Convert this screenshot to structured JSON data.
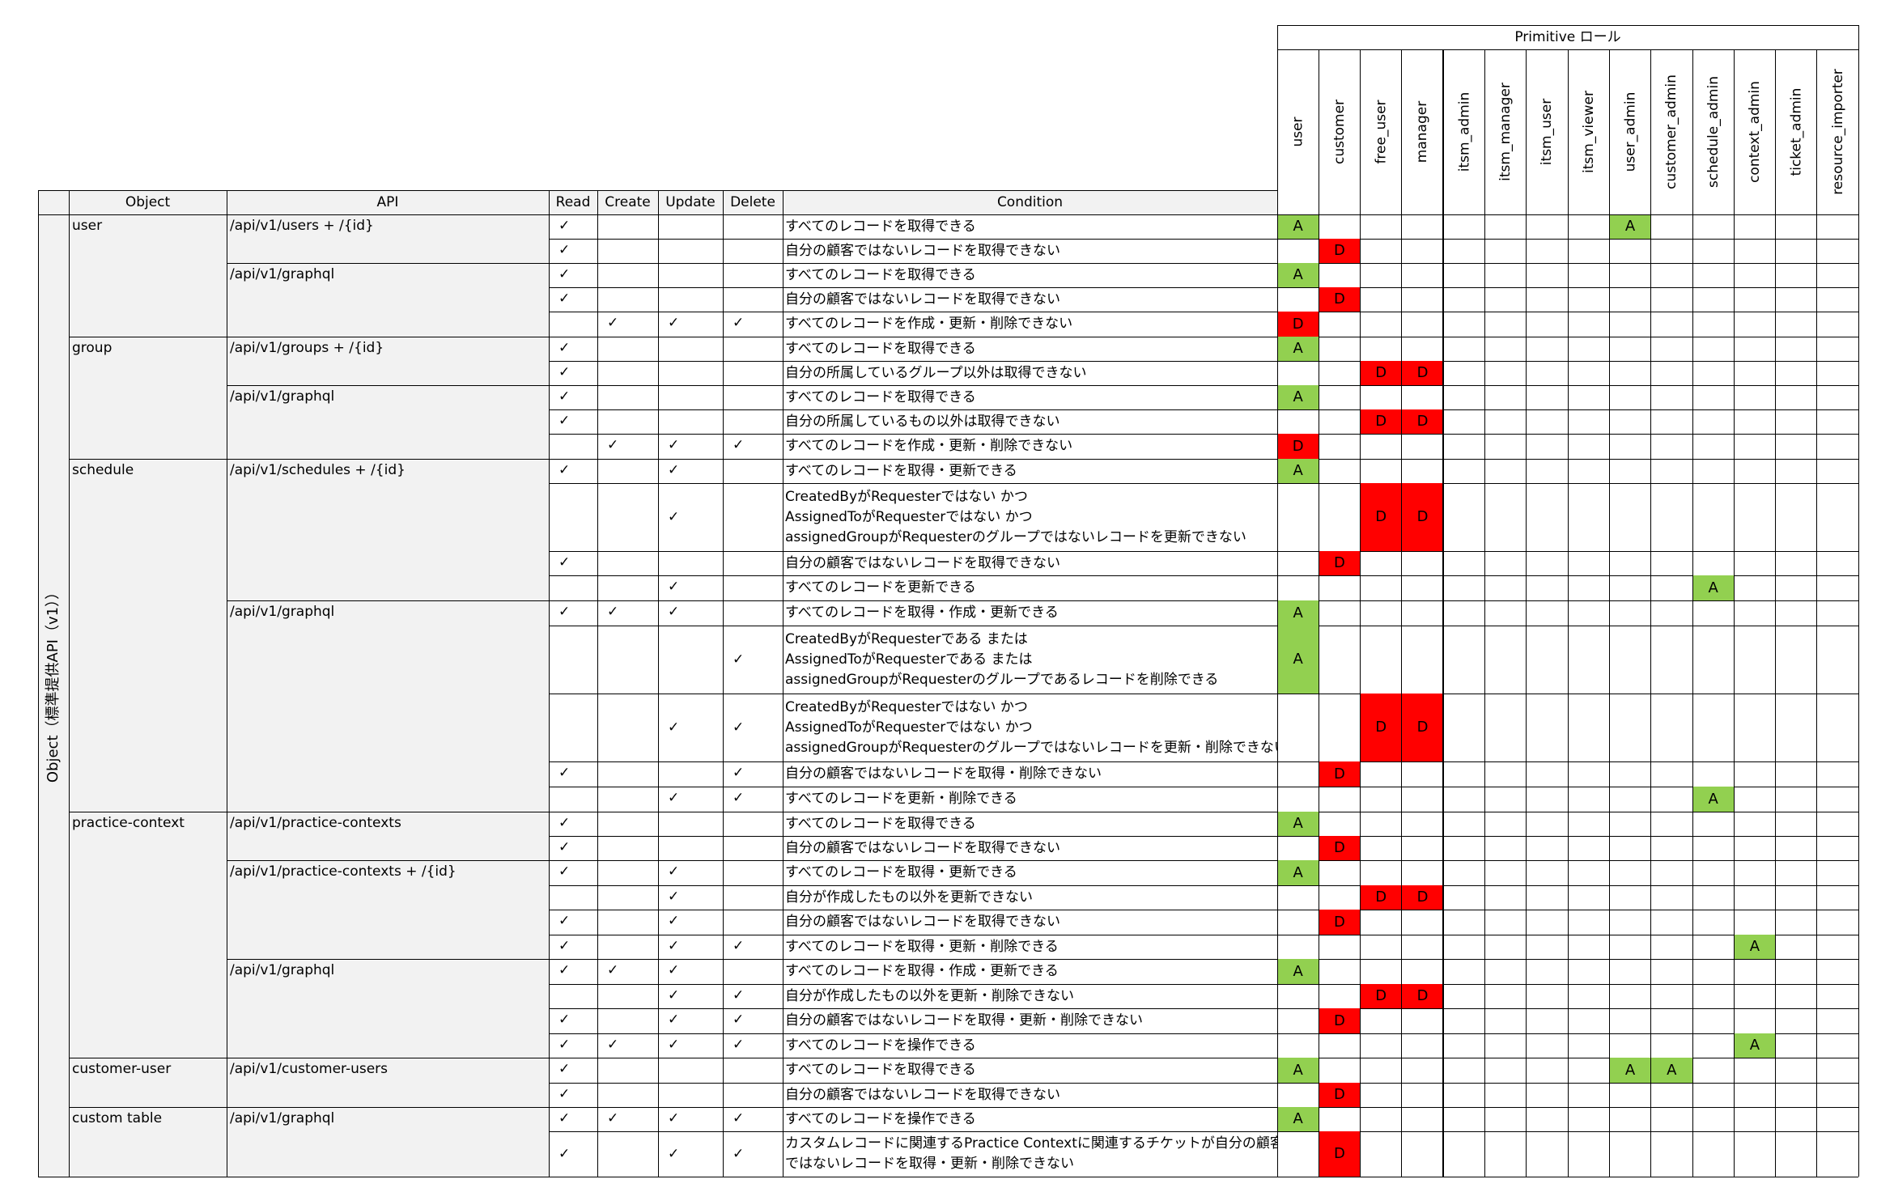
{
  "primitive_header": "Primitive ロール",
  "side_label": "Object（標準提供API（v1））",
  "headers": {
    "object": "Object",
    "api": "API",
    "read": "Read",
    "create": "Create",
    "update": "Update",
    "delete": "Delete",
    "condition": "Condition"
  },
  "roles": [
    "user",
    "customer",
    "free_user",
    "manager",
    "itsm_admin",
    "itsm_manager",
    "itsm_user",
    "itsm_viewer",
    "user_admin",
    "customer_admin",
    "schedule_admin",
    "context_admin",
    "ticket_admin",
    "resource_importer"
  ],
  "check_mark": "✓",
  "colors": {
    "allow_fill": "#92d050",
    "deny_fill": "#ff0000",
    "header_fill": "#f2f2f2",
    "grid": "#000000"
  },
  "objects": [
    {
      "name": "user",
      "rows": 5
    },
    {
      "name": "group",
      "rows": 5
    },
    {
      "name": "schedule",
      "rows": 9
    },
    {
      "name": "practice-context",
      "rows": 10
    },
    {
      "name": "customer-user",
      "rows": 2
    },
    {
      "name": "custom table",
      "rows": 2
    }
  ],
  "apis": [
    {
      "path": "/api/v1/users + /{id}",
      "rows": 2
    },
    {
      "path": "/api/v1/graphql",
      "rows": 3
    },
    {
      "path": "/api/v1/groups + /{id}",
      "rows": 2
    },
    {
      "path": "/api/v1/graphql",
      "rows": 3
    },
    {
      "path": "/api/v1/schedules + /{id}",
      "rows": 4
    },
    {
      "path": "/api/v1/graphql",
      "rows": 5
    },
    {
      "path": "/api/v1/practice-contexts",
      "rows": 2
    },
    {
      "path": "/api/v1/practice-contexts + /{id}",
      "rows": 4
    },
    {
      "path": "/api/v1/graphql",
      "rows": 4
    },
    {
      "path": "/api/v1/customer-users",
      "rows": 2
    },
    {
      "path": "/api/v1/graphql",
      "rows": 2
    }
  ],
  "rows": [
    {
      "r": 1,
      "c": 0,
      "u": 0,
      "d": 0,
      "condition": "すべてのレコードを取得できる",
      "marks": {
        "user": "A",
        "user_admin": "A"
      }
    },
    {
      "r": 1,
      "c": 0,
      "u": 0,
      "d": 0,
      "condition": "自分の顧客ではないレコードを取得できない",
      "marks": {
        "customer": "D"
      }
    },
    {
      "r": 1,
      "c": 0,
      "u": 0,
      "d": 0,
      "condition": "すべてのレコードを取得できる",
      "marks": {
        "user": "A"
      }
    },
    {
      "r": 1,
      "c": 0,
      "u": 0,
      "d": 0,
      "condition": "自分の顧客ではないレコードを取得できない",
      "marks": {
        "customer": "D"
      }
    },
    {
      "r": 0,
      "c": 1,
      "u": 1,
      "d": 1,
      "condition": "すべてのレコードを作成・更新・削除できない",
      "marks": {
        "user": "D"
      }
    },
    {
      "r": 1,
      "c": 0,
      "u": 0,
      "d": 0,
      "condition": "すべてのレコードを取得できる",
      "marks": {
        "user": "A"
      }
    },
    {
      "r": 1,
      "c": 0,
      "u": 0,
      "d": 0,
      "condition": "自分の所属しているグループ以外は取得できない",
      "marks": {
        "free_user": "D",
        "manager": "D"
      }
    },
    {
      "r": 1,
      "c": 0,
      "u": 0,
      "d": 0,
      "condition": "すべてのレコードを取得できる",
      "marks": {
        "user": "A"
      }
    },
    {
      "r": 1,
      "c": 0,
      "u": 0,
      "d": 0,
      "condition": "自分の所属しているもの以外は取得できない",
      "marks": {
        "free_user": "D",
        "manager": "D"
      }
    },
    {
      "r": 0,
      "c": 1,
      "u": 1,
      "d": 1,
      "condition": "すべてのレコードを作成・更新・削除できない",
      "marks": {
        "user": "D"
      }
    },
    {
      "r": 1,
      "c": 0,
      "u": 1,
      "d": 0,
      "condition": "すべてのレコードを取得・更新できる",
      "marks": {
        "user": "A"
      }
    },
    {
      "r": 0,
      "c": 0,
      "u": 1,
      "d": 0,
      "condition": "CreatedByがRequesterではない かつ\nAssignedToがRequesterではない かつ\nassignedGroupがRequesterのグループではないレコードを更新できない",
      "marks": {
        "free_user": "D",
        "manager": "D"
      }
    },
    {
      "r": 1,
      "c": 0,
      "u": 0,
      "d": 0,
      "condition": "自分の顧客ではないレコードを取得できない",
      "marks": {
        "customer": "D"
      }
    },
    {
      "r": 0,
      "c": 0,
      "u": 1,
      "d": 0,
      "condition": "すべてのレコードを更新できる",
      "marks": {
        "schedule_admin": "A"
      }
    },
    {
      "r": 1,
      "c": 1,
      "u": 1,
      "d": 0,
      "condition": "すべてのレコードを取得・作成・更新できる",
      "marks": {
        "user": "A"
      }
    },
    {
      "r": 0,
      "c": 0,
      "u": 0,
      "d": 1,
      "condition": "CreatedByがRequesterである または\nAssignedToがRequesterである または\nassignedGroupがRequesterのグループであるレコードを削除できる",
      "marks": {
        "user": "A"
      }
    },
    {
      "r": 0,
      "c": 0,
      "u": 1,
      "d": 1,
      "condition": "CreatedByがRequesterではない かつ\nAssignedToがRequesterではない かつ\nassignedGroupがRequesterのグループではないレコードを更新・削除できない",
      "marks": {
        "free_user": "D",
        "manager": "D"
      }
    },
    {
      "r": 1,
      "c": 0,
      "u": 0,
      "d": 1,
      "condition": "自分の顧客ではないレコードを取得・削除できない",
      "marks": {
        "customer": "D"
      }
    },
    {
      "r": 0,
      "c": 0,
      "u": 1,
      "d": 1,
      "condition": "すべてのレコードを更新・削除できる",
      "marks": {
        "schedule_admin": "A"
      }
    },
    {
      "r": 1,
      "c": 0,
      "u": 0,
      "d": 0,
      "condition": "すべてのレコードを取得できる",
      "marks": {
        "user": "A"
      }
    },
    {
      "r": 1,
      "c": 0,
      "u": 0,
      "d": 0,
      "condition": "自分の顧客ではないレコードを取得できない",
      "marks": {
        "customer": "D"
      }
    },
    {
      "r": 1,
      "c": 0,
      "u": 1,
      "d": 0,
      "condition": "すべてのレコードを取得・更新できる",
      "marks": {
        "user": "A"
      }
    },
    {
      "r": 0,
      "c": 0,
      "u": 1,
      "d": 0,
      "condition": "自分が作成したもの以外を更新できない",
      "marks": {
        "free_user": "D",
        "manager": "D"
      }
    },
    {
      "r": 1,
      "c": 0,
      "u": 1,
      "d": 0,
      "condition": "自分の顧客ではないレコードを取得できない",
      "marks": {
        "customer": "D"
      }
    },
    {
      "r": 1,
      "c": 0,
      "u": 1,
      "d": 1,
      "condition": "すべてのレコードを取得・更新・削除できる",
      "marks": {
        "context_admin": "A"
      }
    },
    {
      "r": 1,
      "c": 1,
      "u": 1,
      "d": 0,
      "condition": "すべてのレコードを取得・作成・更新できる",
      "marks": {
        "user": "A"
      }
    },
    {
      "r": 0,
      "c": 0,
      "u": 1,
      "d": 1,
      "condition": "自分が作成したもの以外を更新・削除できない",
      "marks": {
        "free_user": "D",
        "manager": "D"
      }
    },
    {
      "r": 1,
      "c": 0,
      "u": 1,
      "d": 1,
      "condition": "自分の顧客ではないレコードを取得・更新・削除できない",
      "marks": {
        "customer": "D"
      }
    },
    {
      "r": 1,
      "c": 1,
      "u": 1,
      "d": 1,
      "condition": "すべてのレコードを操作できる",
      "marks": {
        "context_admin": "A"
      }
    },
    {
      "r": 1,
      "c": 0,
      "u": 0,
      "d": 0,
      "condition": "すべてのレコードを取得できる",
      "marks": {
        "user": "A",
        "user_admin": "A",
        "customer_admin": "A"
      }
    },
    {
      "r": 1,
      "c": 0,
      "u": 0,
      "d": 0,
      "condition": "自分の顧客ではないレコードを取得できない",
      "marks": {
        "customer": "D"
      }
    },
    {
      "r": 1,
      "c": 1,
      "u": 1,
      "d": 1,
      "condition": "すべてのレコードを操作できる",
      "marks": {
        "user": "A"
      }
    },
    {
      "r": 1,
      "c": 0,
      "u": 1,
      "d": 1,
      "condition": "カスタムレコードに関連するPractice Contextに関連するチケットが自分の顧客もの\nではないレコードを取得・更新・削除できない",
      "marks": {
        "customer": "D"
      }
    }
  ]
}
